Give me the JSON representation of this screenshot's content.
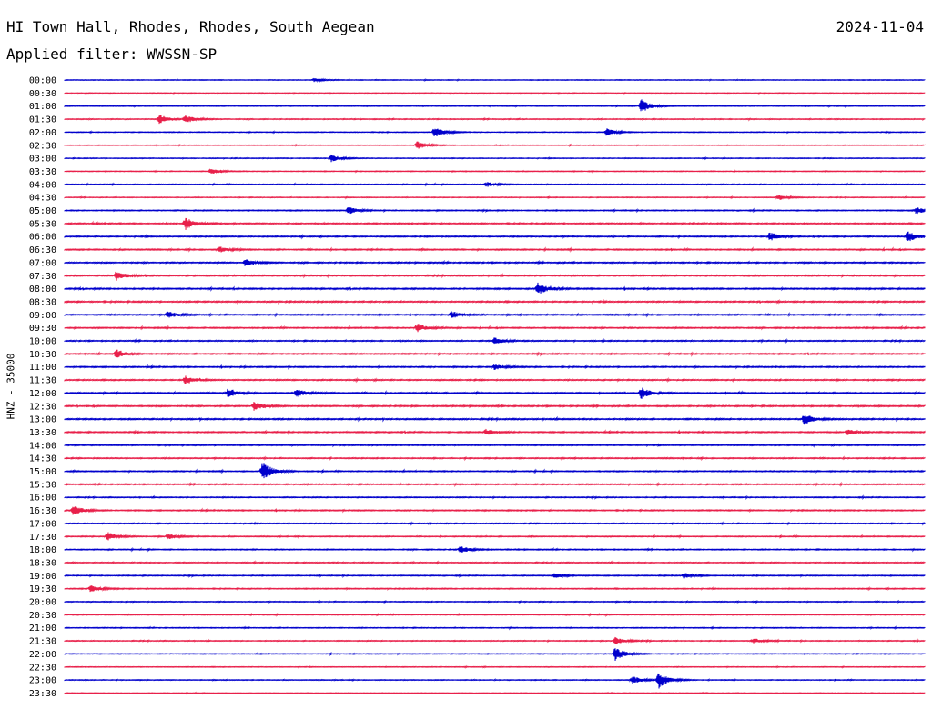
{
  "header": {
    "station": "HI Town Hall, Rhodes, Rhodes, South Aegean",
    "date": "2024-11-04",
    "filter": "Applied filter: WWSSN-SP"
  },
  "chart_data": {
    "type": "line",
    "title": "HI Town Hall, Rhodes, Rhodes, South Aegean",
    "ylabel": "HNZ - 35000",
    "row_labels": [
      "00:00",
      "00:30",
      "01:00",
      "01:30",
      "02:00",
      "02:30",
      "03:00",
      "03:30",
      "04:00",
      "04:30",
      "05:00",
      "05:30",
      "06:00",
      "06:30",
      "07:00",
      "07:30",
      "08:00",
      "08:30",
      "09:00",
      "09:30",
      "10:00",
      "10:30",
      "11:00",
      "11:30",
      "12:00",
      "12:30",
      "13:00",
      "13:30",
      "14:00",
      "14:30",
      "15:00",
      "15:30",
      "16:00",
      "16:30",
      "17:00",
      "17:30",
      "18:00",
      "18:30",
      "19:00",
      "19:30",
      "20:00",
      "20:30",
      "21:00",
      "21:30",
      "22:00",
      "22:30",
      "23:00",
      "23:30"
    ],
    "colors": [
      "#0000cc",
      "#e8204a"
    ],
    "noise": [
      0.25,
      0.2,
      0.3,
      0.35,
      0.3,
      0.25,
      0.3,
      0.3,
      0.35,
      0.3,
      0.4,
      0.5,
      0.5,
      0.5,
      0.5,
      0.5,
      0.55,
      0.55,
      0.5,
      0.5,
      0.45,
      0.5,
      0.5,
      0.5,
      0.55,
      0.55,
      0.55,
      0.5,
      0.45,
      0.45,
      0.45,
      0.45,
      0.4,
      0.45,
      0.4,
      0.4,
      0.4,
      0.4,
      0.4,
      0.4,
      0.35,
      0.35,
      0.35,
      0.35,
      0.3,
      0.3,
      0.3,
      0.25
    ],
    "events": [
      {
        "row": 0,
        "x": 0.29,
        "amp": 2
      },
      {
        "row": 2,
        "x": 0.67,
        "amp": 8
      },
      {
        "row": 3,
        "x": 0.11,
        "amp": 5
      },
      {
        "row": 3,
        "x": 0.14,
        "amp": 5
      },
      {
        "row": 4,
        "x": 0.43,
        "amp": 6
      },
      {
        "row": 4,
        "x": 0.63,
        "amp": 4
      },
      {
        "row": 5,
        "x": 0.41,
        "amp": 5
      },
      {
        "row": 6,
        "x": 0.31,
        "amp": 4
      },
      {
        "row": 7,
        "x": 0.17,
        "amp": 3
      },
      {
        "row": 8,
        "x": 0.49,
        "amp": 3
      },
      {
        "row": 9,
        "x": 0.83,
        "amp": 3
      },
      {
        "row": 10,
        "x": 0.33,
        "amp": 4
      },
      {
        "row": 10,
        "x": 0.99,
        "amp": 4
      },
      {
        "row": 11,
        "x": 0.14,
        "amp": 7
      },
      {
        "row": 12,
        "x": 0.82,
        "amp": 5
      },
      {
        "row": 12,
        "x": 0.98,
        "amp": 6
      },
      {
        "row": 13,
        "x": 0.18,
        "amp": 3
      },
      {
        "row": 14,
        "x": 0.21,
        "amp": 4
      },
      {
        "row": 15,
        "x": 0.06,
        "amp": 6
      },
      {
        "row": 16,
        "x": 0.55,
        "amp": 7
      },
      {
        "row": 18,
        "x": 0.12,
        "amp": 4
      },
      {
        "row": 18,
        "x": 0.45,
        "amp": 4
      },
      {
        "row": 19,
        "x": 0.41,
        "amp": 5
      },
      {
        "row": 20,
        "x": 0.5,
        "amp": 4
      },
      {
        "row": 21,
        "x": 0.06,
        "amp": 5
      },
      {
        "row": 22,
        "x": 0.5,
        "amp": 3
      },
      {
        "row": 23,
        "x": 0.14,
        "amp": 5
      },
      {
        "row": 24,
        "x": 0.19,
        "amp": 5
      },
      {
        "row": 24,
        "x": 0.27,
        "amp": 5
      },
      {
        "row": 24,
        "x": 0.67,
        "amp": 7
      },
      {
        "row": 25,
        "x": 0.22,
        "amp": 5
      },
      {
        "row": 26,
        "x": 0.86,
        "amp": 6
      },
      {
        "row": 27,
        "x": 0.49,
        "amp": 3
      },
      {
        "row": 27,
        "x": 0.91,
        "amp": 3
      },
      {
        "row": 30,
        "x": 0.23,
        "amp": 11
      },
      {
        "row": 33,
        "x": 0.01,
        "amp": 6
      },
      {
        "row": 35,
        "x": 0.05,
        "amp": 5
      },
      {
        "row": 35,
        "x": 0.12,
        "amp": 3
      },
      {
        "row": 36,
        "x": 0.46,
        "amp": 4
      },
      {
        "row": 38,
        "x": 0.57,
        "amp": 3
      },
      {
        "row": 38,
        "x": 0.72,
        "amp": 3
      },
      {
        "row": 39,
        "x": 0.03,
        "amp": 4
      },
      {
        "row": 43,
        "x": 0.64,
        "amp": 4
      },
      {
        "row": 43,
        "x": 0.8,
        "amp": 3
      },
      {
        "row": 44,
        "x": 0.64,
        "amp": 8
      },
      {
        "row": 46,
        "x": 0.69,
        "amp": 10
      },
      {
        "row": 46,
        "x": 0.66,
        "amp": 5
      }
    ]
  }
}
